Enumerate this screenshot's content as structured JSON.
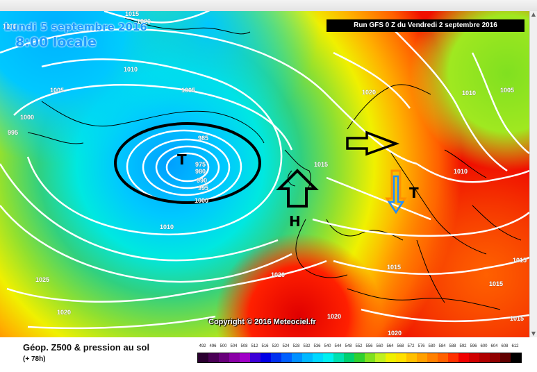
{
  "header": {
    "date": "Lundi 5 septembre 2016",
    "time": "8:00 locale",
    "run": "Run GFS 0 Z du Vendredi 2 septembre 2016"
  },
  "map": {
    "isobar_labels": [
      {
        "text": "1015"
      },
      {
        "text": "1020"
      },
      {
        "text": "1010"
      },
      {
        "text": "1005"
      },
      {
        "text": "1000"
      },
      {
        "text": "995"
      },
      {
        "text": "1010"
      },
      {
        "text": "1005"
      },
      {
        "text": "985"
      },
      {
        "text": "975"
      },
      {
        "text": "980"
      },
      {
        "text": "990"
      },
      {
        "text": "995"
      },
      {
        "text": "1000"
      },
      {
        "text": "1015"
      },
      {
        "text": "1010"
      },
      {
        "text": "1025"
      },
      {
        "text": "1020"
      },
      {
        "text": "1020"
      },
      {
        "text": "1020"
      },
      {
        "text": "1020"
      },
      {
        "text": "1015"
      },
      {
        "text": "1015"
      },
      {
        "text": "1015"
      },
      {
        "text": "1015"
      },
      {
        "text": "1020"
      },
      {
        "text": "1010"
      },
      {
        "text": "1005"
      },
      {
        "text": "1010"
      }
    ],
    "low_label": "T",
    "high_label": "H",
    "europe_low_label": "T"
  },
  "footer": {
    "copyright": "Copyright © 2016 Meteociel.fr",
    "product": "Géop. Z500 & pression au sol",
    "forecast_hour": "(+ 78h)"
  },
  "legend": {
    "values": [
      "492",
      "496",
      "500",
      "504",
      "508",
      "512",
      "516",
      "520",
      "524",
      "528",
      "532",
      "536",
      "540",
      "544",
      "548",
      "552",
      "556",
      "560",
      "564",
      "568",
      "572",
      "576",
      "580",
      "584",
      "588",
      "592",
      "596",
      "600",
      "604",
      "608",
      "612"
    ],
    "colors": [
      "#2a0030",
      "#4a0055",
      "#68007a",
      "#8a00a6",
      "#a000c8",
      "#3c00d8",
      "#0000e6",
      "#0030f0",
      "#0060ff",
      "#0090ff",
      "#00b8ff",
      "#00d8ff",
      "#00f0f0",
      "#00e0b0",
      "#00d070",
      "#30d030",
      "#80e020",
      "#c0f020",
      "#f0f000",
      "#ffe000",
      "#ffc000",
      "#ffa000",
      "#ff8000",
      "#ff6000",
      "#ff3000",
      "#f00000",
      "#d00000",
      "#b00000",
      "#900000",
      "#600000",
      "#000000"
    ]
  }
}
